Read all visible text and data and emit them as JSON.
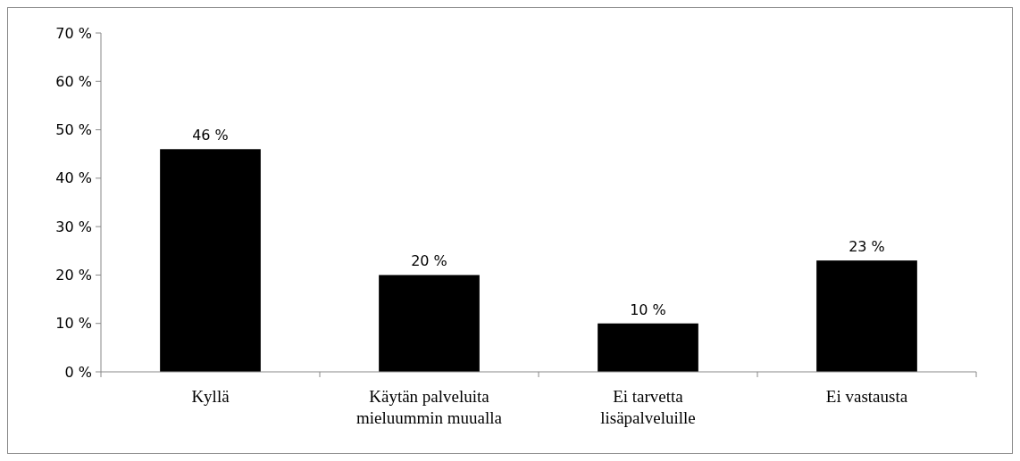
{
  "chart_data": {
    "type": "bar",
    "categories": [
      "Kyllä",
      "Käytän palveluita mieluummin muualla",
      "Ei tarvetta lisäpalveluille",
      "Ei vastausta"
    ],
    "values": [
      46,
      20,
      10,
      23
    ],
    "value_labels": [
      "46 %",
      "20 %",
      "10 %",
      "23 %"
    ],
    "color": "#000000",
    "ylim": [
      0,
      70
    ],
    "yticks": [
      {
        "value": 0,
        "label": "0 %"
      },
      {
        "value": 10,
        "label": "10 %"
      },
      {
        "value": 20,
        "label": "20 %"
      },
      {
        "value": 30,
        "label": "30 %"
      },
      {
        "value": 40,
        "label": "40 %"
      },
      {
        "value": 50,
        "label": "50 %"
      },
      {
        "value": 60,
        "label": "60 %"
      },
      {
        "value": 70,
        "label": "70 %"
      }
    ],
    "grid": false
  }
}
